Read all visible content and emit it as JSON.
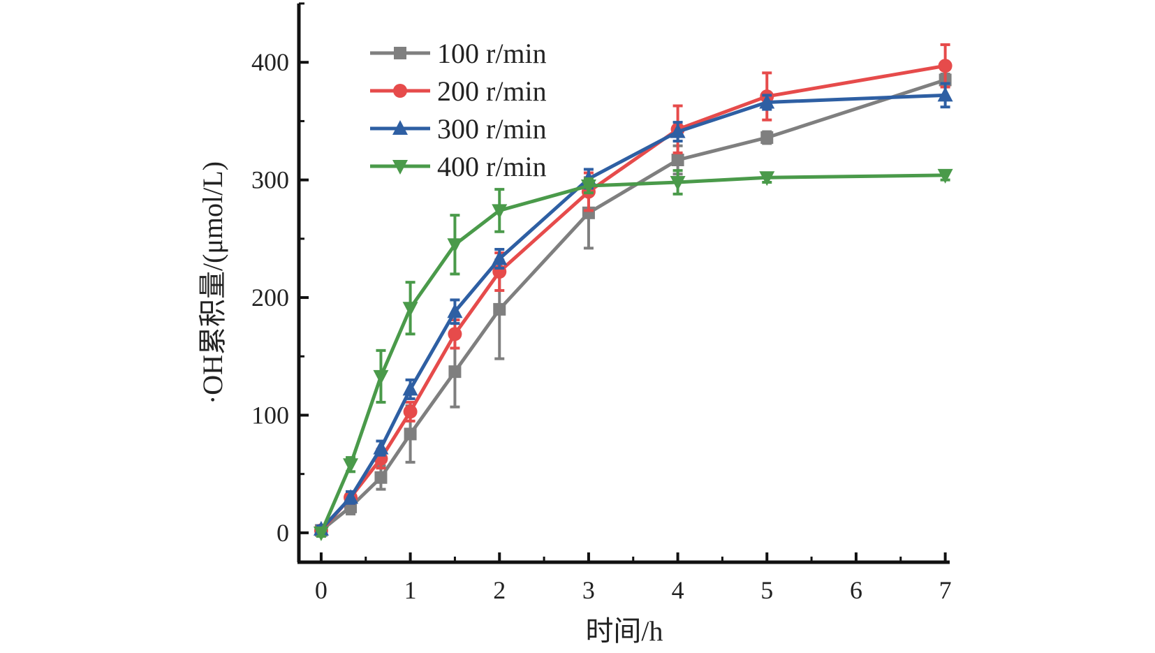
{
  "chart_data": {
    "type": "line",
    "title": "",
    "xlabel": "时间/h",
    "ylabel": "·OH累积量/(μmol/L)",
    "xlim": [
      -0.25,
      7.05
    ],
    "ylim": [
      -25,
      450
    ],
    "xticks": [
      0,
      1,
      2,
      3,
      4,
      5,
      6,
      7
    ],
    "yticks": [
      0,
      100,
      200,
      300,
      400
    ],
    "grid": false,
    "legend_position": "top-left",
    "error_bars": true,
    "series": [
      {
        "name": "100 r/min",
        "color": "#7f7f7f",
        "marker": "square",
        "x": [
          0,
          0.33,
          0.67,
          1,
          1.5,
          2,
          3,
          4,
          5,
          7
        ],
        "y": [
          2,
          22,
          47,
          84,
          137,
          190,
          272,
          317,
          336,
          385
        ],
        "err": [
          4,
          6,
          10,
          24,
          30,
          42,
          30,
          12,
          5,
          5
        ]
      },
      {
        "name": "200 r/min",
        "color": "#e64b4b",
        "marker": "circle",
        "x": [
          0,
          0.33,
          0.67,
          1,
          1.5,
          2,
          3,
          4,
          5,
          7
        ],
        "y": [
          2,
          30,
          63,
          103,
          169,
          222,
          290,
          343,
          371,
          397
        ],
        "err": [
          3,
          5,
          8,
          8,
          12,
          16,
          16,
          20,
          20,
          18
        ]
      },
      {
        "name": "300 r/min",
        "color": "#2e5fa3",
        "marker": "triangle-up",
        "x": [
          0,
          0.33,
          0.67,
          1,
          1.5,
          2,
          3,
          4,
          5,
          7
        ],
        "y": [
          3,
          30,
          72,
          122,
          188,
          233,
          301,
          341,
          366,
          372
        ],
        "err": [
          3,
          5,
          6,
          8,
          10,
          8,
          8,
          8,
          6,
          10
        ]
      },
      {
        "name": "400 r/min",
        "color": "#4a9a4a",
        "marker": "triangle-down",
        "x": [
          0,
          0.33,
          0.67,
          1,
          1.5,
          2,
          3,
          4,
          5,
          7
        ],
        "y": [
          0,
          58,
          133,
          191,
          245,
          274,
          295,
          298,
          302,
          304
        ],
        "err": [
          3,
          6,
          22,
          22,
          25,
          18,
          6,
          10,
          4,
          4
        ]
      }
    ]
  }
}
